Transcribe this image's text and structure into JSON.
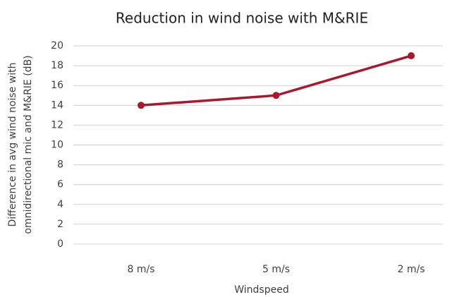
{
  "chart_data": {
    "type": "line",
    "title": "Reduction in wind noise with M&RIE",
    "xlabel": "Windspeed",
    "ylabel": [
      "Difference in avg wind noise with",
      "omnidirectional mic and M&RIE (dB)"
    ],
    "categories": [
      "8 m/s",
      "5 m/s",
      "2 m/s"
    ],
    "series": [
      {
        "name": "Difference",
        "color": "#a8192e",
        "values": [
          14,
          15,
          19
        ]
      }
    ],
    "ylim": [
      0,
      20
    ],
    "yticks": [
      0,
      2,
      4,
      6,
      8,
      10,
      12,
      14,
      16,
      18,
      20
    ],
    "grid": true
  }
}
